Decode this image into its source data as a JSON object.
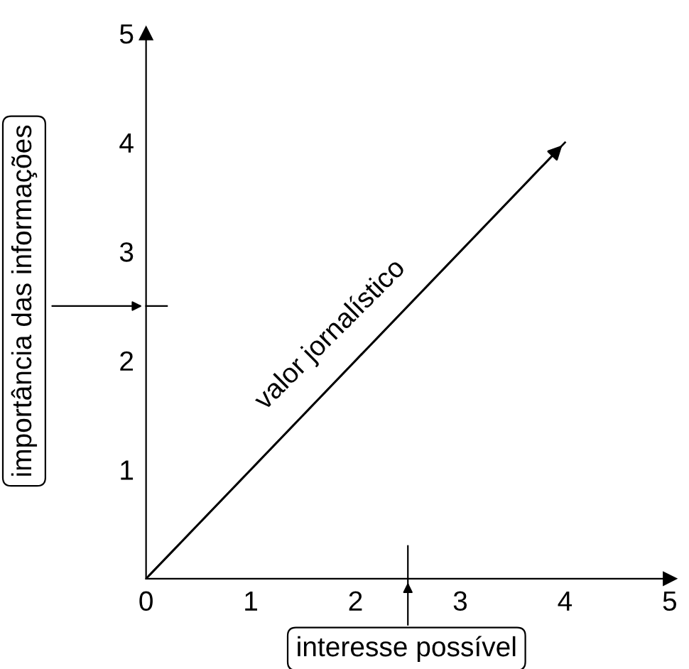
{
  "chart_data": {
    "type": "line",
    "xlabel": "interesse possível",
    "ylabel": "importância das informações",
    "x": [
      0,
      4
    ],
    "series": [
      {
        "color": "#000000",
        "values": [
          0,
          4
        ]
      }
    ],
    "xlim": [
      0,
      5
    ],
    "ylim": [
      0,
      5
    ],
    "xticks": [
      0,
      1,
      2,
      3,
      4,
      5
    ],
    "yticks": [
      1,
      2,
      3,
      4,
      5
    ],
    "annotations": [
      {
        "text": "valor jornalístico",
        "x": 2,
        "y": 2
      }
    ],
    "grid": false,
    "legend": false,
    "marker": "none",
    "line_style": "solid"
  }
}
